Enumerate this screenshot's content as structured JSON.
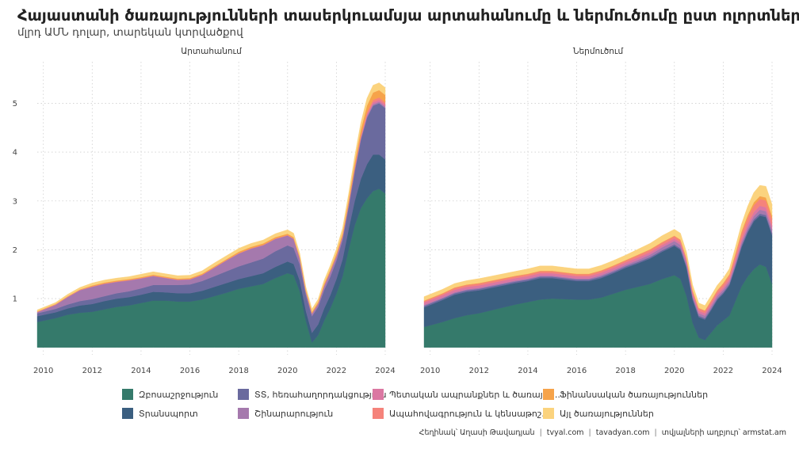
{
  "page": {
    "title": "Հայաստանի ծառայությունների տասերկուամսյա արտահանումը և ներմուծումը ըստ ոլորտների",
    "subtitle": "մլրդ ԱՄՆ դոլար, տարեկան կտրվածքով"
  },
  "caption": {
    "author": "Հեղինակ՝ Աղասի Թավադյան",
    "site1": "tvyal.com",
    "site2": "tavadyan.com",
    "source": "տվյալների աղբյուր՝ armstat.am",
    "sep": "|"
  },
  "legend": [
    {
      "label": "Զբոսաշրջություն",
      "color": "#357a6b"
    },
    {
      "label": "Տրանսպորտ",
      "color": "#3b5f80"
    },
    {
      "label": "ՏՏ, հեռահաղորդակցություն",
      "color": "#6a6a9e"
    },
    {
      "label": "Շինարարություն",
      "color": "#a579ad"
    },
    {
      "label": "Պետական ապրանքներ և ծառայու...",
      "color": "#db77a2"
    },
    {
      "label": "Ապահովագրություն և կենսաթոշ...",
      "color": "#f5837b"
    },
    {
      "label": "Ֆինանսական ծառայություններ",
      "color": "#f6a34a"
    },
    {
      "label": "Այլ ծառայություններ",
      "color": "#fbd37e"
    }
  ],
  "chart_data": {
    "type": "area",
    "stacked": true,
    "x": [
      2009.75,
      2010.5,
      2011,
      2011.5,
      2012,
      2012.5,
      2013,
      2013.5,
      2014,
      2014.5,
      2015,
      2015.5,
      2016,
      2016.5,
      2017,
      2017.5,
      2018,
      2018.5,
      2019,
      2019.5,
      2020,
      2020.25,
      2020.5,
      2020.75,
      2021,
      2021.25,
      2021.5,
      2021.75,
      2022,
      2022.25,
      2022.5,
      2022.75,
      2023,
      2023.25,
      2023.5,
      2023.75,
      2024
    ],
    "xlim": [
      2009.75,
      2024
    ],
    "xticks": [
      2010,
      2012,
      2014,
      2016,
      2018,
      2020,
      2022,
      2024
    ],
    "ylim": [
      -0.15,
      5.85
    ],
    "yticks": [
      1,
      2,
      3,
      4,
      5
    ],
    "grid": true,
    "legend_position": "bottom",
    "panels": [
      {
        "title": "Արտահանում",
        "series": [
          {
            "key": "Զբոսաշրջություն",
            "values": [
              0.52,
              0.6,
              0.67,
              0.71,
              0.73,
              0.78,
              0.83,
              0.86,
              0.91,
              0.96,
              0.96,
              0.94,
              0.94,
              0.98,
              1.05,
              1.12,
              1.2,
              1.25,
              1.3,
              1.42,
              1.52,
              1.48,
              1.15,
              0.55,
              0.1,
              0.25,
              0.55,
              0.8,
              1.1,
              1.45,
              2.0,
              2.5,
              2.85,
              3.05,
              3.2,
              3.25,
              3.15
            ]
          },
          {
            "key": "Տրանսպորտ",
            "values": [
              0.12,
              0.12,
              0.13,
              0.15,
              0.16,
              0.17,
              0.17,
              0.17,
              0.17,
              0.18,
              0.17,
              0.17,
              0.17,
              0.18,
              0.19,
              0.2,
              0.2,
              0.21,
              0.22,
              0.23,
              0.24,
              0.23,
              0.22,
              0.2,
              0.2,
              0.22,
              0.25,
              0.27,
              0.3,
              0.35,
              0.42,
              0.5,
              0.6,
              0.7,
              0.75,
              0.7,
              0.7
            ]
          },
          {
            "key": "ՏՏ, հեռահաղորդակցություն",
            "values": [
              0.06,
              0.07,
              0.08,
              0.09,
              0.1,
              0.1,
              0.11,
              0.12,
              0.13,
              0.14,
              0.15,
              0.17,
              0.18,
              0.2,
              0.22,
              0.24,
              0.26,
              0.28,
              0.3,
              0.32,
              0.33,
              0.33,
              0.33,
              0.33,
              0.34,
              0.36,
              0.38,
              0.38,
              0.38,
              0.4,
              0.45,
              0.6,
              0.8,
              0.95,
              1.0,
              1.05,
              1.05
            ]
          },
          {
            "key": "Շինարարություն",
            "values": [
              0.02,
              0.08,
              0.15,
              0.22,
              0.25,
              0.25,
              0.23,
              0.22,
              0.2,
              0.18,
              0.14,
              0.1,
              0.1,
              0.12,
              0.17,
              0.22,
              0.26,
              0.28,
              0.27,
              0.25,
              0.2,
              0.18,
              0.12,
              0.06,
              0.05,
              0.06,
              0.08,
              0.1,
              0.08,
              0.06,
              0.05,
              0.04,
              0.03,
              0.03,
              0.03,
              0.03,
              0.03
            ]
          },
          {
            "key": "Պետական ապրանքներ և ծառայու...",
            "values": [
              0.01,
              0.01,
              0.01,
              0.01,
              0.01,
              0.01,
              0.01,
              0.01,
              0.01,
              0.01,
              0.01,
              0.01,
              0.01,
              0.01,
              0.01,
              0.01,
              0.01,
              0.01,
              0.01,
              0.01,
              0.01,
              0.01,
              0.01,
              0.01,
              0.01,
              0.01,
              0.01,
              0.01,
              0.02,
              0.02,
              0.02,
              0.03,
              0.03,
              0.04,
              0.04,
              0.04,
              0.04
            ]
          },
          {
            "key": "Ապահովագրություն և կենսաթոշ...",
            "values": [
              0.0,
              0.0,
              0.0,
              0.0,
              0.0,
              0.0,
              0.0,
              0.0,
              0.0,
              0.0,
              0.0,
              0.0,
              0.0,
              0.0,
              0.0,
              0.0,
              0.0,
              0.0,
              0.0,
              0.0,
              0.0,
              0.0,
              0.0,
              0.0,
              0.0,
              0.0,
              0.0,
              0.0,
              0.0,
              0.0,
              0.01,
              0.02,
              0.03,
              0.04,
              0.05,
              0.05,
              0.05
            ]
          },
          {
            "key": "Ֆինանսական ծառայություններ",
            "values": [
              0.01,
              0.01,
              0.01,
              0.01,
              0.02,
              0.02,
              0.02,
              0.02,
              0.02,
              0.02,
              0.02,
              0.02,
              0.02,
              0.02,
              0.02,
              0.02,
              0.03,
              0.03,
              0.03,
              0.03,
              0.03,
              0.03,
              0.03,
              0.03,
              0.03,
              0.03,
              0.04,
              0.04,
              0.05,
              0.06,
              0.08,
              0.1,
              0.12,
              0.14,
              0.15,
              0.15,
              0.15
            ]
          },
          {
            "key": "Այլ ծառայություններ",
            "values": [
              0.03,
              0.03,
              0.04,
              0.04,
              0.05,
              0.05,
              0.05,
              0.05,
              0.06,
              0.06,
              0.06,
              0.06,
              0.06,
              0.06,
              0.07,
              0.07,
              0.07,
              0.07,
              0.07,
              0.07,
              0.08,
              0.08,
              0.07,
              0.06,
              0.06,
              0.06,
              0.07,
              0.08,
              0.09,
              0.1,
              0.12,
              0.13,
              0.14,
              0.15,
              0.15,
              0.15,
              0.15
            ]
          }
        ]
      },
      {
        "title": "Ներմուծում",
        "series": [
          {
            "key": "Զբոսաշրջություն",
            "values": [
              0.42,
              0.52,
              0.6,
              0.66,
              0.7,
              0.76,
              0.82,
              0.88,
              0.93,
              0.98,
              1.0,
              0.99,
              0.98,
              0.98,
              1.02,
              1.1,
              1.18,
              1.24,
              1.3,
              1.4,
              1.48,
              1.4,
              1.05,
              0.5,
              0.2,
              0.15,
              0.3,
              0.45,
              0.55,
              0.65,
              0.95,
              1.25,
              1.45,
              1.6,
              1.7,
              1.65,
              1.3
            ]
          },
          {
            "key": "Տրանսպորտ",
            "values": [
              0.4,
              0.45,
              0.48,
              0.48,
              0.47,
              0.46,
              0.45,
              0.44,
              0.43,
              0.44,
              0.42,
              0.4,
              0.38,
              0.38,
              0.4,
              0.42,
              0.45,
              0.48,
              0.52,
              0.56,
              0.6,
              0.6,
              0.58,
              0.48,
              0.42,
              0.42,
              0.46,
              0.52,
              0.55,
              0.62,
              0.7,
              0.8,
              0.9,
              0.98,
              1.0,
              1.02,
              1.0
            ]
          },
          {
            "key": "ՏՏ, հեռահաղորդակցություն",
            "values": [
              0.03,
              0.03,
              0.03,
              0.03,
              0.03,
              0.03,
              0.03,
              0.03,
              0.03,
              0.03,
              0.03,
              0.03,
              0.03,
              0.03,
              0.03,
              0.03,
              0.03,
              0.03,
              0.03,
              0.03,
              0.03,
              0.03,
              0.03,
              0.03,
              0.03,
              0.03,
              0.03,
              0.03,
              0.03,
              0.03,
              0.03,
              0.04,
              0.04,
              0.04,
              0.04,
              0.04,
              0.04
            ]
          },
          {
            "key": "Շինարարություն",
            "values": [
              0.02,
              0.02,
              0.02,
              0.02,
              0.02,
              0.02,
              0.02,
              0.02,
              0.02,
              0.02,
              0.02,
              0.02,
              0.02,
              0.02,
              0.03,
              0.03,
              0.03,
              0.04,
              0.05,
              0.06,
              0.07,
              0.07,
              0.06,
              0.05,
              0.05,
              0.05,
              0.05,
              0.05,
              0.05,
              0.05,
              0.06,
              0.06,
              0.06,
              0.07,
              0.08,
              0.08,
              0.08
            ]
          },
          {
            "key": "Պետական ապրանքներ և ծառայու...",
            "values": [
              0.05,
              0.05,
              0.05,
              0.05,
              0.05,
              0.05,
              0.05,
              0.05,
              0.05,
              0.05,
              0.05,
              0.05,
              0.05,
              0.05,
              0.05,
              0.05,
              0.05,
              0.05,
              0.05,
              0.05,
              0.05,
              0.05,
              0.05,
              0.05,
              0.05,
              0.05,
              0.05,
              0.05,
              0.05,
              0.05,
              0.06,
              0.07,
              0.08,
              0.08,
              0.08,
              0.08,
              0.08
            ]
          },
          {
            "key": "Ապահովագրություն և կենսաթոշ...",
            "values": [
              0.03,
              0.03,
              0.04,
              0.04,
              0.04,
              0.04,
              0.04,
              0.04,
              0.04,
              0.04,
              0.04,
              0.04,
              0.04,
              0.04,
              0.04,
              0.04,
              0.04,
              0.05,
              0.05,
              0.05,
              0.05,
              0.05,
              0.05,
              0.05,
              0.05,
              0.05,
              0.06,
              0.06,
              0.07,
              0.08,
              0.1,
              0.12,
              0.13,
              0.14,
              0.14,
              0.14,
              0.14
            ]
          },
          {
            "key": "Ֆինանսական ծառայություններ",
            "values": [
              0.01,
              0.01,
              0.01,
              0.01,
              0.01,
              0.01,
              0.01,
              0.01,
              0.01,
              0.01,
              0.01,
              0.01,
              0.01,
              0.01,
              0.01,
              0.01,
              0.01,
              0.01,
              0.01,
              0.01,
              0.01,
              0.01,
              0.01,
              0.01,
              0.01,
              0.01,
              0.01,
              0.01,
              0.02,
              0.02,
              0.03,
              0.04,
              0.05,
              0.06,
              0.06,
              0.06,
              0.06
            ]
          },
          {
            "key": "Այլ ծառայություններ",
            "values": [
              0.08,
              0.08,
              0.08,
              0.08,
              0.09,
              0.09,
              0.09,
              0.09,
              0.1,
              0.1,
              0.1,
              0.1,
              0.1,
              0.1,
              0.1,
              0.1,
              0.1,
              0.11,
              0.12,
              0.13,
              0.13,
              0.13,
              0.12,
              0.11,
              0.1,
              0.1,
              0.1,
              0.1,
              0.1,
              0.11,
              0.13,
              0.15,
              0.18,
              0.2,
              0.22,
              0.23,
              0.23
            ]
          }
        ]
      }
    ]
  }
}
